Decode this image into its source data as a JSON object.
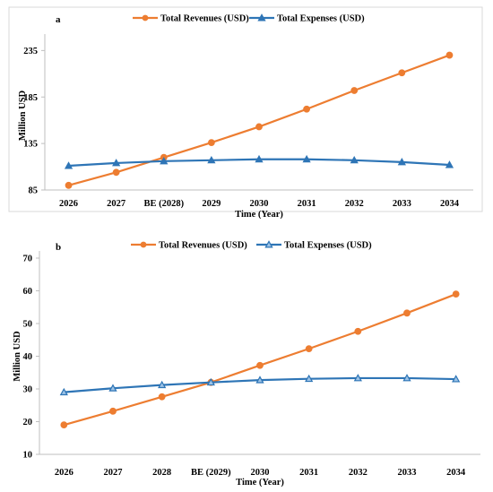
{
  "chart_data": [
    {
      "type": "line",
      "panel_label": "a",
      "categories": [
        "2026",
        "2027",
        "BE (2028)",
        "2029",
        "2030",
        "2031",
        "2032",
        "2033",
        "2034"
      ],
      "series": [
        {
          "name": "Total Revenues (USD)",
          "color": "#ED7D31",
          "marker": "circle",
          "values": [
            90,
            104,
            120,
            136,
            153,
            172,
            192,
            211,
            230
          ]
        },
        {
          "name": "Total Expenses (USD)",
          "color": "#2E75B6",
          "marker": "triangle",
          "values": [
            111,
            114,
            116,
            117,
            118,
            118,
            117,
            115,
            112
          ]
        }
      ],
      "xlabel": "Time (Year)",
      "ylabel": "Million USD",
      "ylim": [
        85,
        245
      ],
      "yticks": [
        85,
        135,
        185,
        235
      ],
      "grid": false,
      "legend": "top"
    },
    {
      "type": "line",
      "panel_label": "b",
      "categories": [
        "2026",
        "2027",
        "2028",
        "BE (2029)",
        "2030",
        "2031",
        "2032",
        "2033",
        "2034"
      ],
      "series": [
        {
          "name": "Total Revenues (USD)",
          "color": "#ED7D31",
          "marker": "circle",
          "values": [
            19.0,
            23.2,
            27.6,
            32.0,
            37.2,
            42.3,
            47.6,
            53.2,
            59.0
          ]
        },
        {
          "name": "Total Expenses (USD)",
          "color": "#2E75B6",
          "marker": "triangle",
          "values": [
            29.0,
            30.2,
            31.2,
            32.0,
            32.7,
            33.1,
            33.3,
            33.3,
            33.0
          ]
        }
      ],
      "xlabel": "Time (Year)",
      "ylabel": "Million USD",
      "ylim": [
        10,
        70
      ],
      "yticks": [
        10,
        20,
        30,
        40,
        50,
        60,
        70
      ],
      "grid": false,
      "legend": "top"
    }
  ]
}
